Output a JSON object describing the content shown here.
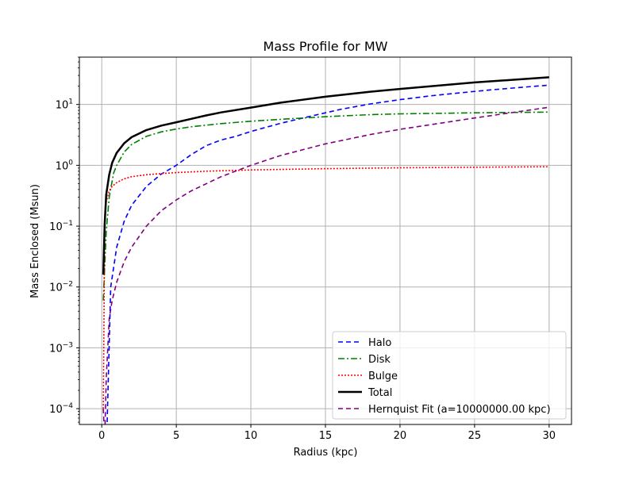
{
  "chart_data": {
    "type": "line",
    "title": "Mass Profile for MW",
    "xlabel": "Radius (kpc)",
    "ylabel": "Mass Enclosed (Msun)",
    "xscale": "linear",
    "yscale": "log",
    "xlim": [
      -1.5,
      31.5
    ],
    "ylim": [
      5.5e-05,
      60
    ],
    "grid": true,
    "legend_position": "lower right",
    "xticks": [
      {
        "value": 0,
        "label": "0"
      },
      {
        "value": 5,
        "label": "5"
      },
      {
        "value": 10,
        "label": "10"
      },
      {
        "value": 15,
        "label": "15"
      },
      {
        "value": 20,
        "label": "20"
      },
      {
        "value": 25,
        "label": "25"
      },
      {
        "value": 30,
        "label": "30"
      }
    ],
    "yticks": [
      {
        "value": 0.0001,
        "base": "10",
        "exp": "−4"
      },
      {
        "value": 0.001,
        "base": "10",
        "exp": "−3"
      },
      {
        "value": 0.01,
        "base": "10",
        "exp": "−2"
      },
      {
        "value": 0.1,
        "base": "10",
        "exp": "−1"
      },
      {
        "value": 1,
        "base": "10",
        "exp": "0"
      },
      {
        "value": 10,
        "base": "10",
        "exp": "1"
      }
    ],
    "series": [
      {
        "name": "Halo",
        "color": "#0000ff",
        "dash": "6,4",
        "width": 1.6,
        "x": [
          0.1,
          0.35,
          0.6,
          1.0,
          1.5,
          2.0,
          3.0,
          4.0,
          5.0,
          6.0,
          7.0,
          8.0,
          9.0,
          10.0,
          12.0,
          14.0,
          16.0,
          18.0,
          20.0,
          22.0,
          24.0,
          26.0,
          28.0,
          30.0
        ],
        "y": [
          1e-05,
          4.7e-05,
          0.01,
          0.045,
          0.12,
          0.22,
          0.45,
          0.72,
          1.0,
          1.5,
          2.1,
          2.6,
          3.0,
          3.6,
          4.9,
          6.4,
          8.3,
          10.2,
          12.0,
          13.8,
          15.5,
          17.3,
          19.0,
          20.8
        ]
      },
      {
        "name": "Disk",
        "color": "#008000",
        "dash": "8,3,2,3",
        "width": 1.6,
        "x": [
          0.1,
          0.3,
          0.5,
          0.8,
          1.0,
          1.5,
          2.0,
          3.0,
          4.0,
          5.0,
          6.0,
          8.0,
          10.0,
          12.0,
          15.0,
          18.0,
          20.0,
          25.0,
          30.0
        ],
        "y": [
          0.006,
          0.08,
          0.3,
          0.75,
          1.0,
          1.65,
          2.2,
          3.0,
          3.55,
          3.95,
          4.3,
          4.85,
          5.3,
          5.7,
          6.3,
          6.8,
          7.0,
          7.3,
          7.5
        ]
      },
      {
        "name": "Bulge",
        "color": "#ff0000",
        "dash": "2,2",
        "width": 1.6,
        "x": [
          0.1,
          0.2,
          0.3,
          0.5,
          0.7,
          1.0,
          1.5,
          2.0,
          3.0,
          4.0,
          5.0,
          7.0,
          10.0,
          15.0,
          20.0,
          25.0,
          30.0
        ],
        "y": [
          0.0001,
          0.1,
          0.25,
          0.38,
          0.45,
          0.52,
          0.6,
          0.65,
          0.7,
          0.73,
          0.76,
          0.8,
          0.84,
          0.88,
          0.91,
          0.93,
          0.95
        ]
      },
      {
        "name": "Total",
        "color": "#000000",
        "dash": "",
        "width": 2.5,
        "x": [
          0.1,
          0.2,
          0.3,
          0.5,
          0.7,
          1.0,
          1.5,
          2.0,
          3.0,
          4.0,
          5.0,
          6.0,
          7.0,
          8.0,
          10.0,
          12.0,
          15.0,
          18.0,
          20.0,
          25.0,
          30.0
        ],
        "y": [
          0.016,
          0.11,
          0.33,
          0.7,
          1.1,
          1.6,
          2.3,
          2.9,
          3.8,
          4.5,
          5.1,
          5.8,
          6.6,
          7.4,
          8.9,
          10.7,
          13.4,
          16.2,
          18.0,
          23.0,
          28.0
        ]
      },
      {
        "name": "Hernquist Fit (a=10000000.00 kpc)",
        "color": "#800080",
        "dash": "6,4",
        "width": 1.6,
        "x": [
          0.1,
          0.2,
          0.3,
          0.5,
          0.7,
          1.0,
          1.5,
          2.0,
          3.0,
          4.0,
          5.0,
          6.0,
          8.0,
          10.0,
          12.0,
          15.0,
          18.0,
          20.0,
          25.0,
          30.0
        ],
        "y": [
          0.0001,
          3e-05,
          0.0003,
          0.003,
          0.006,
          0.012,
          0.026,
          0.045,
          0.1,
          0.18,
          0.27,
          0.38,
          0.65,
          1.0,
          1.45,
          2.25,
          3.2,
          3.9,
          6.0,
          9.0
        ]
      }
    ]
  }
}
